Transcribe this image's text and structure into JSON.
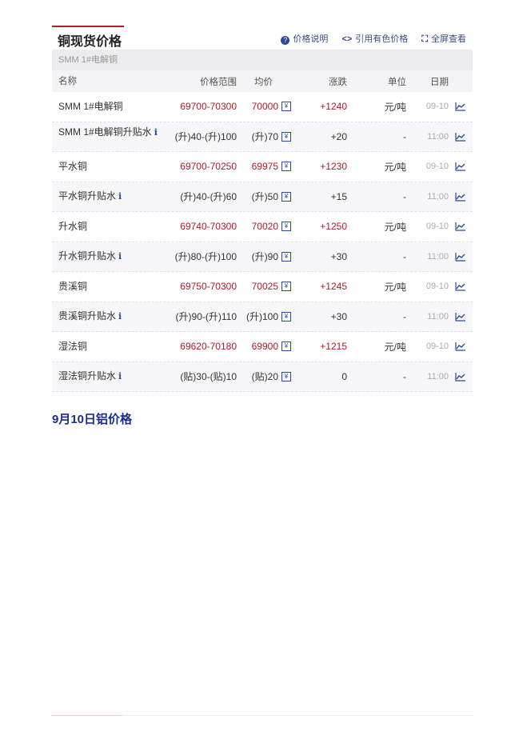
{
  "header": {
    "title": "铜现货价格",
    "links": [
      {
        "icon": "question-icon",
        "label": "价格说明"
      },
      {
        "icon": "code-icon",
        "label": "引用有色价格"
      },
      {
        "icon": "fullscreen-icon",
        "label": "全屏查看"
      }
    ]
  },
  "subheader": "SMM 1#电解铜",
  "columns": {
    "name": "名称",
    "range": "价格范围",
    "avg": "均价",
    "change": "涨跌",
    "unit": "单位",
    "date": "日期"
  },
  "rows": [
    {
      "name": "SMM 1#电解铜",
      "info": false,
      "range": "69700-70300",
      "avg": "70000",
      "change": "+1240",
      "unit": "元/吨",
      "date": "09-10",
      "red": true
    },
    {
      "name": "SMM 1#电解铜升贴水",
      "info": true,
      "range": "(升)40-(升)100",
      "avg": "(升)70",
      "change": "+20",
      "unit": "-",
      "date": "11:00",
      "red": false
    },
    {
      "name": "平水铜",
      "info": false,
      "range": "69700-70250",
      "avg": "69975",
      "change": "+1230",
      "unit": "元/吨",
      "date": "09-10",
      "red": true
    },
    {
      "name": "平水铜升贴水",
      "info": true,
      "range": "(升)40-(升)60",
      "avg": "(升)50",
      "change": "+15",
      "unit": "-",
      "date": "11:00",
      "red": false
    },
    {
      "name": "升水铜",
      "info": false,
      "range": "69740-70300",
      "avg": "70020",
      "change": "+1250",
      "unit": "元/吨",
      "date": "09-10",
      "red": true
    },
    {
      "name": "升水铜升贴水",
      "info": true,
      "range": "(升)80-(升)100",
      "avg": "(升)90",
      "change": "+30",
      "unit": "-",
      "date": "11:00",
      "red": false
    },
    {
      "name": "贵溪铜",
      "info": false,
      "range": "69750-70300",
      "avg": "70025",
      "change": "+1245",
      "unit": "元/吨",
      "date": "09-10",
      "red": true
    },
    {
      "name": "贵溪铜升贴水",
      "info": true,
      "range": "(升)90-(升)110",
      "avg": "(升)100",
      "change": "+30",
      "unit": "-",
      "date": "11:00",
      "red": false
    },
    {
      "name": "湿法铜",
      "info": false,
      "range": "69620-70180",
      "avg": "69900",
      "change": "+1215",
      "unit": "元/吨",
      "date": "09-10",
      "red": true
    },
    {
      "name": "湿法铜升贴水",
      "info": true,
      "range": "(贴)30-(贴)10",
      "avg": "(贴)20",
      "change": "0",
      "unit": "-",
      "date": "11:00",
      "red": false
    }
  ],
  "info_glyph": "i",
  "yen_glyph": "¥",
  "section_title": "9月10日铝价格",
  "colors": {
    "accent_red": "#b5192a",
    "link_blue": "#2b4a9a",
    "section_blue": "#1a2d8f"
  }
}
